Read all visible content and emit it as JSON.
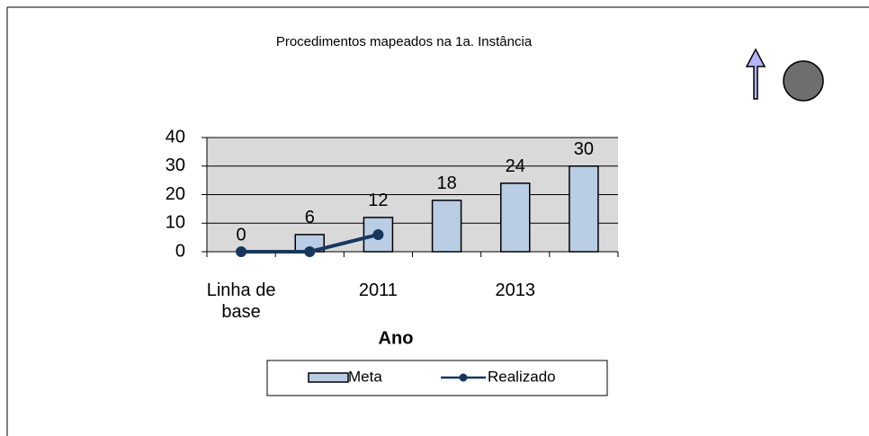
{
  "chart_data": {
    "type": "bar",
    "title": "Procedimentos mapeados na 1a. Instância",
    "x_label": "Ano",
    "categories": [
      "Linha de base",
      null,
      "2011",
      null,
      "2013",
      null
    ],
    "series": [
      {
        "name": "Meta",
        "type": "bar",
        "color": "#b9cde5",
        "values": [
          0,
          6,
          12,
          18,
          24,
          30
        ]
      },
      {
        "name": "Realizado",
        "type": "line",
        "color": "#17375e",
        "values": [
          0,
          0,
          6,
          null,
          null,
          null
        ]
      }
    ],
    "ylim": [
      0,
      40
    ],
    "yticks": [
      0,
      10,
      20,
      30,
      40
    ],
    "grid": true,
    "legend": "bottom"
  }
}
